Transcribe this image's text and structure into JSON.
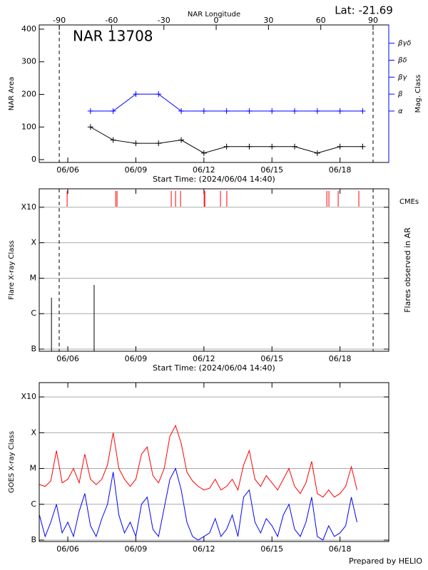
{
  "header": {
    "latitude": "Lat: -21.69"
  },
  "footer": "Prepared by HELIO",
  "chart_data": [
    {
      "type": "line",
      "title": "NAR 13708",
      "xlabel": "Start Time: (2024/06/04 14:40)",
      "ylabel": "NAR Area",
      "y2label": "Mag. Class",
      "x2label": "NAR Longitude",
      "x2lim": [
        -101.5,
        99
      ],
      "x2ticks": [
        -90,
        -60,
        -30,
        0,
        30,
        60,
        90
      ],
      "vlines": [
        -90,
        90
      ],
      "xlim": [
        4.74,
        20.15
      ],
      "xticks": [
        {
          "value": 6,
          "label": "06/06"
        },
        {
          "value": 9,
          "label": "06/09"
        },
        {
          "value": 12,
          "label": "06/12"
        },
        {
          "value": 15,
          "label": "06/15"
        },
        {
          "value": 18,
          "label": "06/18"
        }
      ],
      "ylim": [
        -8.7,
        413
      ],
      "yticks": [
        0,
        100,
        200,
        300,
        400
      ],
      "y2lim": [
        -2.03,
        6.08
      ],
      "y2ticks": [
        {
          "value": 1,
          "label": "α"
        },
        {
          "value": 2,
          "label": "β"
        },
        {
          "value": 3,
          "label": "βγ"
        },
        {
          "value": 4,
          "label": "βδ"
        },
        {
          "value": 5,
          "label": "βγδ"
        }
      ],
      "x": [
        7,
        8,
        9,
        10,
        11,
        12,
        13,
        14,
        15,
        16,
        17,
        18,
        19
      ],
      "series": [
        {
          "color": "#000000",
          "values": [
            100,
            60,
            50,
            50,
            60,
            20,
            40,
            40,
            40,
            40,
            20,
            40,
            40
          ]
        },
        {
          "color": "#0000ff",
          "axis": "y2",
          "values": [
            1,
            1,
            2,
            2,
            1,
            1,
            1,
            1,
            1,
            1,
            1,
            1,
            1
          ]
        }
      ]
    },
    {
      "type": "flares",
      "xlabel": "Start Time: (2024/06/04 14:40)",
      "ylabel": "Flare X-ray Class",
      "y2label": "Flares observed in AR",
      "cme_label": "CMEs",
      "cme_color": "#ff0000",
      "cme_x": [
        5.97,
        8.11,
        8.17,
        10.56,
        10.75,
        10.97,
        12.01,
        12.04,
        12.73,
        13.01,
        17.42,
        17.51,
        17.92,
        18.83
      ],
      "vlines": [
        5.62,
        19.46
      ],
      "grid": true,
      "xlim": [
        4.74,
        20.15
      ],
      "xticks": [
        {
          "value": 6,
          "label": "06/06"
        },
        {
          "value": 9,
          "label": "06/09"
        },
        {
          "value": 12,
          "label": "06/12"
        },
        {
          "value": 15,
          "label": "06/15"
        },
        {
          "value": 18,
          "label": "06/18"
        }
      ],
      "ylim": [
        -7.06,
        -2.48
      ],
      "yticks": [
        {
          "value": -7,
          "label": "B"
        },
        {
          "value": -6,
          "label": "C"
        },
        {
          "value": -5,
          "label": "M"
        },
        {
          "value": -4,
          "label": "X"
        },
        {
          "value": -3,
          "label": "X10"
        }
      ],
      "x": [
        5.28,
        7.16
      ],
      "values": [
        -5.55,
        -5.19
      ],
      "color": "#000000"
    },
    {
      "type": "line",
      "ylabel": "GOES X-ray Class",
      "grid": true,
      "xlim": [
        4.74,
        20.15
      ],
      "xticks": [
        {
          "value": 6,
          "label": "06/06"
        },
        {
          "value": 9,
          "label": "06/09"
        },
        {
          "value": 12,
          "label": "06/12"
        },
        {
          "value": 15,
          "label": "06/15"
        },
        {
          "value": 18,
          "label": "06/18"
        }
      ],
      "ylim": [
        -7.04,
        -2.6
      ],
      "yticks": [
        {
          "value": -7,
          "label": "B"
        },
        {
          "value": -6,
          "label": "C"
        },
        {
          "value": -5,
          "label": "M"
        },
        {
          "value": -4,
          "label": "X"
        },
        {
          "value": -3,
          "label": "X10"
        }
      ],
      "x": [
        4.75,
        5,
        5.25,
        5.5,
        5.75,
        6,
        6.25,
        6.5,
        6.75,
        7,
        7.25,
        7.5,
        7.75,
        8,
        8.25,
        8.5,
        8.75,
        9,
        9.25,
        9.5,
        9.75,
        10,
        10.25,
        10.5,
        10.75,
        11,
        11.25,
        11.5,
        11.75,
        12,
        12.25,
        12.5,
        12.75,
        13,
        13.25,
        13.5,
        13.75,
        14,
        14.25,
        14.5,
        14.75,
        15,
        15.25,
        15.5,
        15.75,
        16,
        16.25,
        16.5,
        16.75,
        17,
        17.25,
        17.5,
        17.75,
        18,
        18.25,
        18.5,
        18.75
      ],
      "series": [
        {
          "color": "#ff0000",
          "values": [
            -5.45,
            -5.5,
            -5.35,
            -4.5,
            -5.4,
            -5.3,
            -5.0,
            -5.4,
            -4.6,
            -5.3,
            -5.45,
            -5.3,
            -4.9,
            -4.0,
            -5.0,
            -5.3,
            -5.5,
            -5.3,
            -4.6,
            -4.4,
            -5.2,
            -5.4,
            -5.0,
            -4.1,
            -3.8,
            -4.3,
            -5.1,
            -5.35,
            -5.5,
            -5.6,
            -5.55,
            -5.3,
            -5.6,
            -5.5,
            -5.3,
            -5.6,
            -4.9,
            -4.5,
            -5.3,
            -5.5,
            -5.2,
            -5.4,
            -5.6,
            -5.3,
            -5.0,
            -5.5,
            -5.7,
            -5.4,
            -4.8,
            -5.7,
            -5.8,
            -5.6,
            -5.8,
            -5.7,
            -5.5,
            -4.95,
            -5.6
          ]
        },
        {
          "color": "#0000ff",
          "values": [
            -6.3,
            -6.9,
            -6.5,
            -6.0,
            -6.8,
            -6.5,
            -6.9,
            -6.2,
            -5.7,
            -6.6,
            -6.9,
            -6.4,
            -6.0,
            -5.1,
            -6.3,
            -6.8,
            -6.5,
            -6.9,
            -6.0,
            -5.8,
            -6.7,
            -6.9,
            -6.1,
            -5.3,
            -5.0,
            -5.6,
            -6.5,
            -6.9,
            -7.0,
            -6.9,
            -6.8,
            -6.4,
            -6.9,
            -6.7,
            -6.3,
            -6.9,
            -5.8,
            -5.6,
            -6.5,
            -6.8,
            -6.4,
            -6.6,
            -6.9,
            -6.3,
            -6.0,
            -6.7,
            -6.9,
            -6.5,
            -5.8,
            -6.9,
            -7.0,
            -6.6,
            -6.9,
            -6.8,
            -6.6,
            -5.8,
            -6.5
          ]
        }
      ]
    }
  ]
}
